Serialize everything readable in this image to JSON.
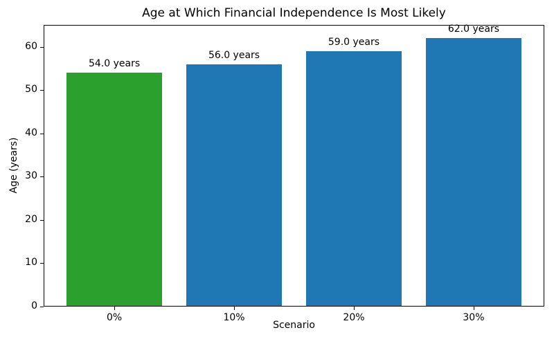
{
  "figure": {
    "background": "#ffffff"
  },
  "chart_data": {
    "type": "bar",
    "title": "Age at Which Financial Independence Is Most Likely",
    "xlabel": "Scenario",
    "ylabel": "Age (years)",
    "categories": [
      "0%",
      "10%",
      "20%",
      "30%"
    ],
    "values": [
      54.0,
      56.0,
      59.0,
      62.0
    ],
    "bar_labels": [
      "54.0 years",
      "56.0 years",
      "59.0 years",
      "62.0 years"
    ],
    "bar_colors": [
      "#2ca02c",
      "#1f77b4",
      "#1f77b4",
      "#1f77b4"
    ],
    "yticks": [
      0,
      10,
      20,
      30,
      40,
      50,
      60
    ],
    "ylim": [
      0,
      65.1
    ],
    "xlim": [
      -0.59,
      3.59
    ],
    "bar_width": 0.8,
    "grid": false,
    "legend": "none",
    "axis_color": "#000000",
    "text_color": "#000000"
  }
}
